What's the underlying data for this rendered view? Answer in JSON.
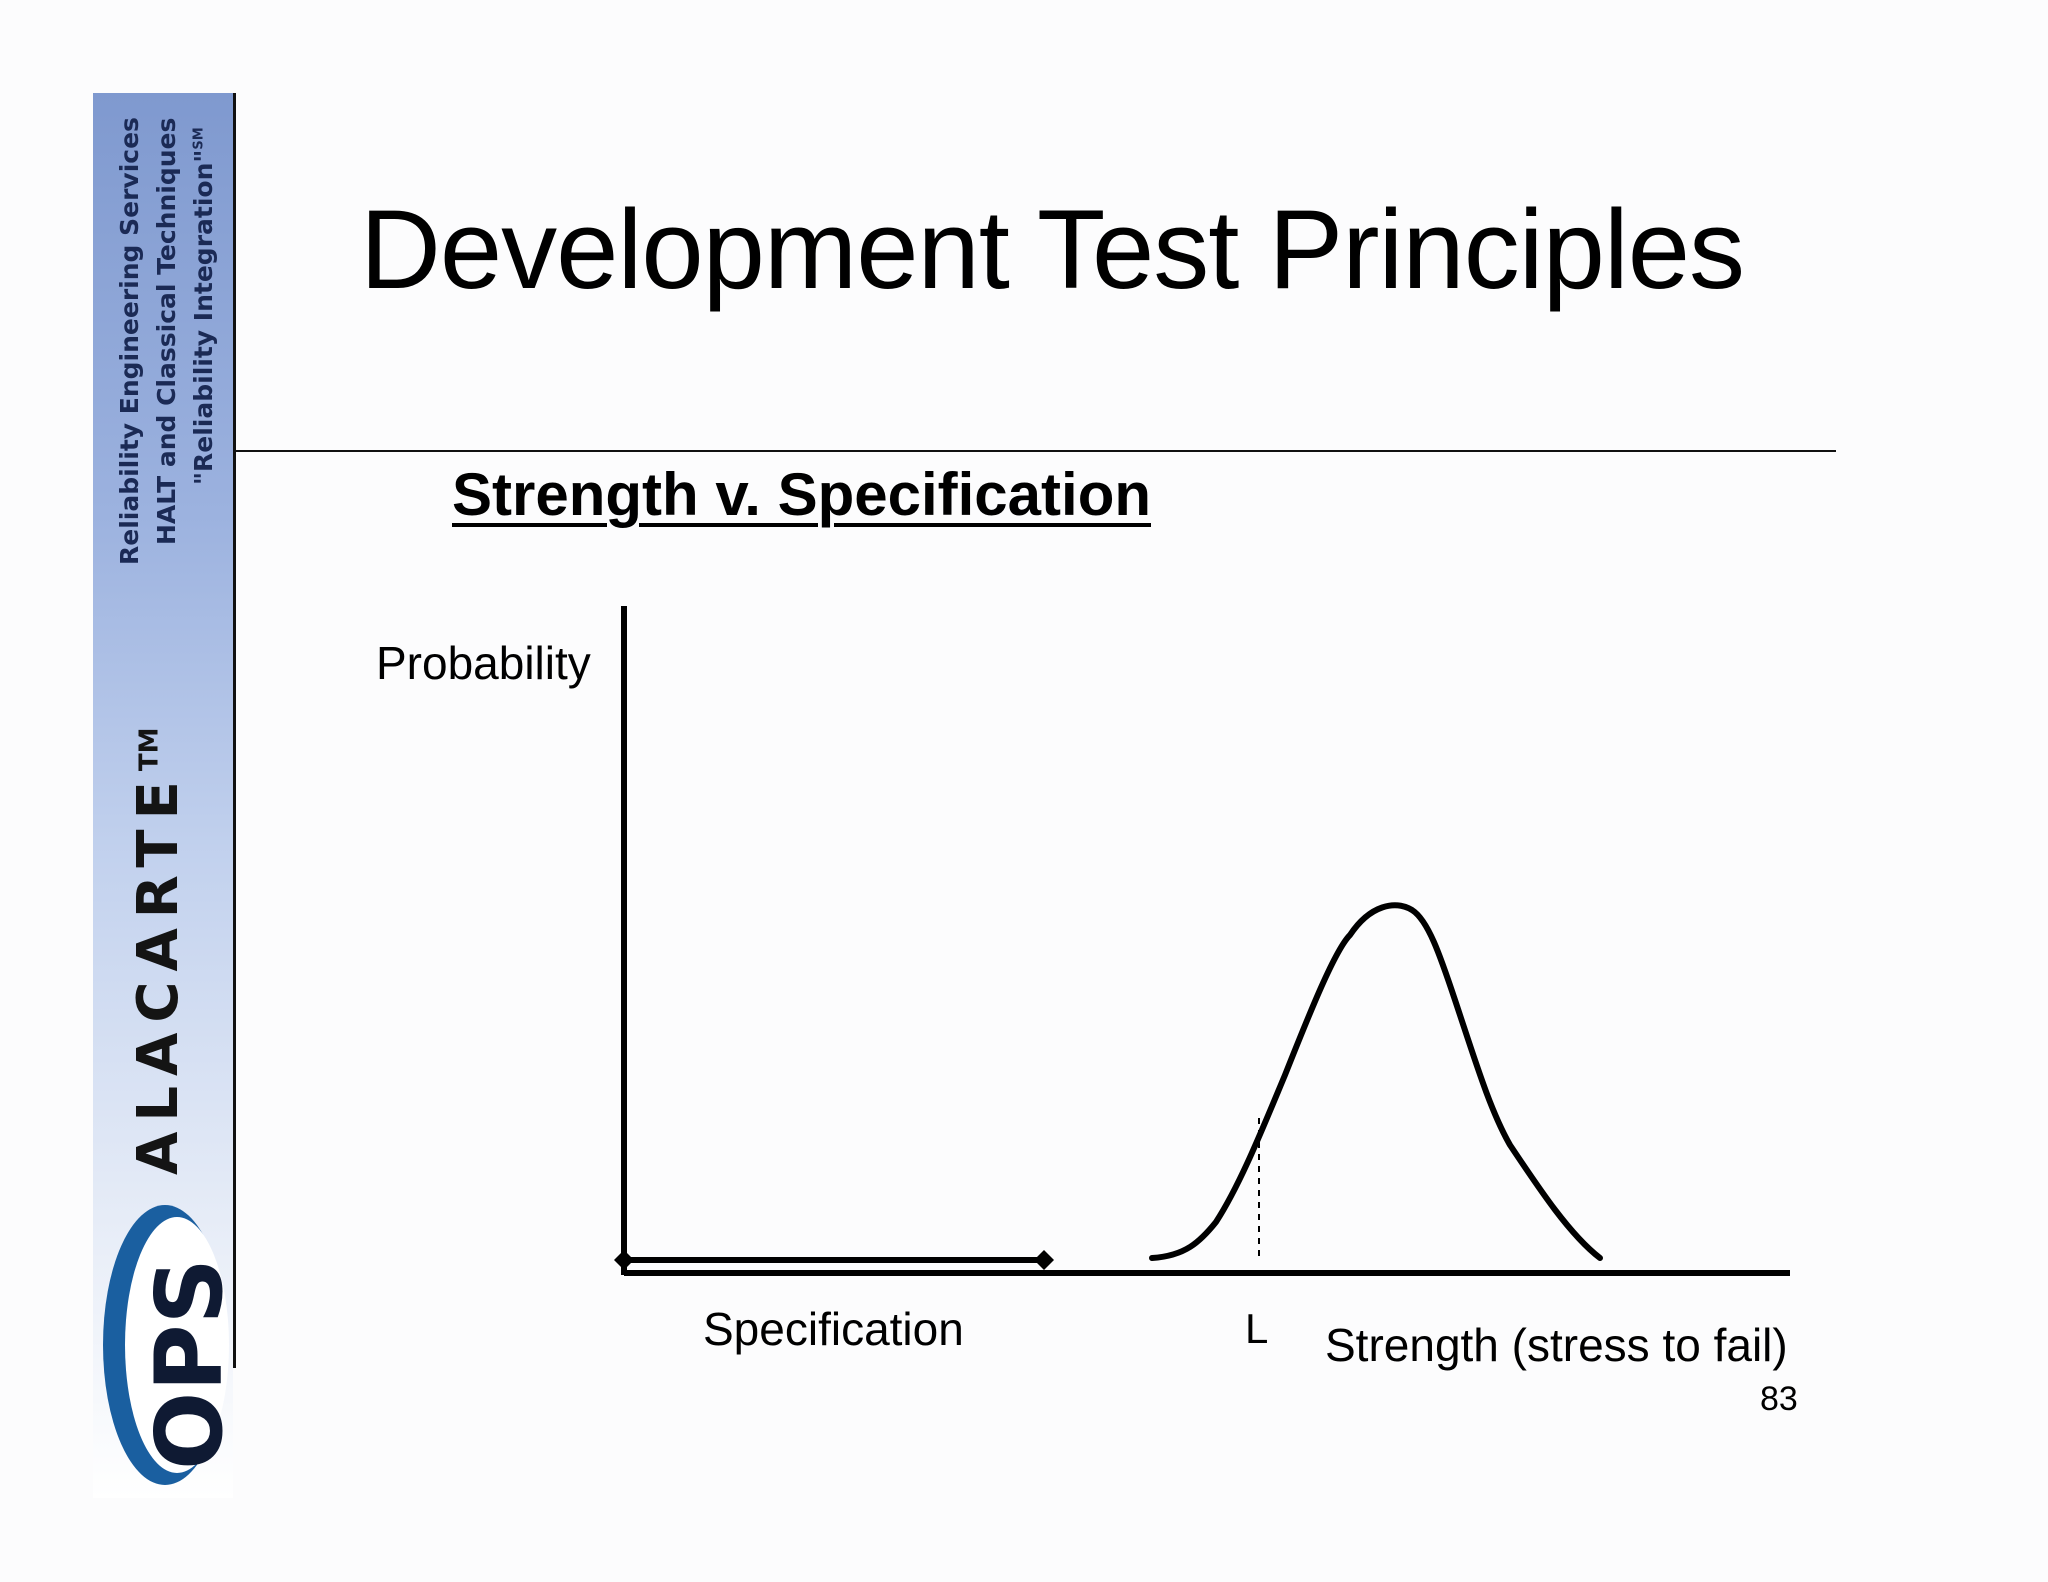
{
  "sidebar": {
    "tagline_1": "Reliability Engineering Services",
    "tagline_2": "HALT and Classical Techniques",
    "tagline_3": "\"Reliability Integration\"",
    "tagline_3_mark": "SM",
    "brand": "ALACARTE",
    "brand_mark": "TM",
    "logo_text": "OPS",
    "colors": {
      "gradient_top": "#7f99cf",
      "logo_blue": "#1a5fa0",
      "logo_text": "#0f1a33"
    }
  },
  "slide": {
    "title": "Development Test Principles",
    "subtitle": "Strength v. Specification",
    "page_number": "83"
  },
  "diagram": {
    "y_axis_label": "Probability",
    "specification_label": "Specification",
    "limit_label": "L",
    "x_axis_label": "Strength (stress to fail)",
    "curve_shape": "bell",
    "limit_marker": "dashed-vertical",
    "specification_marker": "double-diamond-arrow"
  }
}
